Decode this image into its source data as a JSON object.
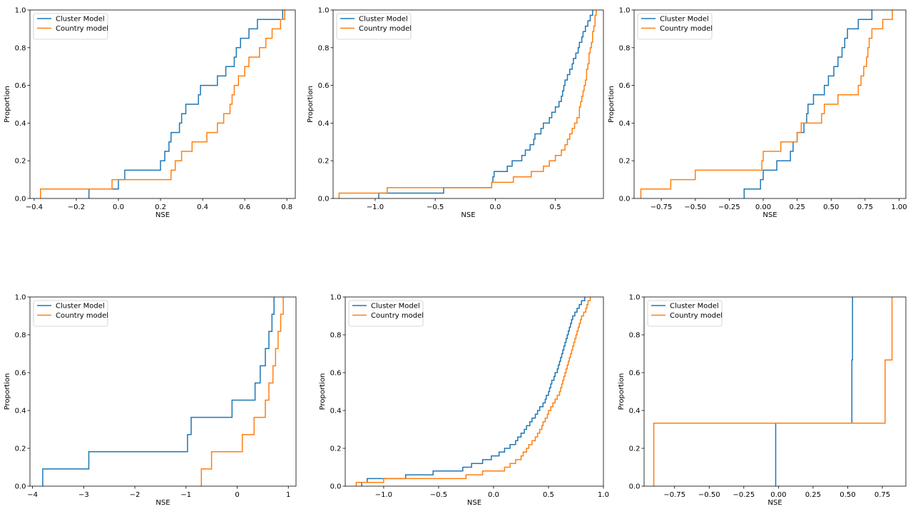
{
  "colors": {
    "cluster": "#1f77b4",
    "country": "#ff7f0e",
    "axis": "#000000"
  },
  "chart_data": [
    {
      "type": "line",
      "step": "ecdf",
      "xlabel": "NSE",
      "ylabel": "Proportion",
      "xlim": [
        -0.42,
        0.84
      ],
      "ylim": [
        0,
        1
      ],
      "xticks": [
        -0.4,
        -0.2,
        0.0,
        0.2,
        0.4,
        0.6,
        0.8
      ],
      "xtick_labels": [
        "−0.4",
        "−0.2",
        "0.0",
        "0.2",
        "0.4",
        "0.6",
        "0.8"
      ],
      "yticks": [
        0,
        0.2,
        0.4,
        0.6,
        0.8,
        1.0
      ],
      "ytick_labels": [
        "0.0",
        "0.2",
        "0.4",
        "0.6",
        "0.8",
        "1.0"
      ],
      "legend": "top-left",
      "series": [
        {
          "name": "Cluster Model",
          "x": [
            -0.14,
            0.0,
            0.03,
            0.2,
            0.22,
            0.24,
            0.25,
            0.29,
            0.3,
            0.32,
            0.38,
            0.39,
            0.47,
            0.51,
            0.55,
            0.56,
            0.58,
            0.62,
            0.66,
            0.78
          ]
        },
        {
          "name": "Country model",
          "x": [
            -0.37,
            -0.03,
            0.25,
            0.27,
            0.3,
            0.35,
            0.42,
            0.47,
            0.5,
            0.53,
            0.54,
            0.55,
            0.57,
            0.6,
            0.62,
            0.67,
            0.7,
            0.73,
            0.77,
            0.79
          ]
        }
      ]
    },
    {
      "type": "line",
      "step": "ecdf",
      "xlabel": "NSE",
      "ylabel": "Proportion",
      "xlim": [
        -1.35,
        0.9
      ],
      "ylim": [
        0,
        1
      ],
      "xticks": [
        -1.0,
        -0.5,
        0.0,
        0.5
      ],
      "xtick_labels": [
        "−1.0",
        "−0.5",
        "0.0",
        "0.5"
      ],
      "yticks": [
        0,
        0.2,
        0.4,
        0.6,
        0.8,
        1.0
      ],
      "ytick_labels": [
        "0.0",
        "0.2",
        "0.4",
        "0.6",
        "0.8",
        "1.0"
      ],
      "legend": "top-left",
      "series": [
        {
          "name": "Cluster Model",
          "x": [
            -0.97,
            -0.43,
            -0.03,
            -0.02,
            -0.01,
            0.1,
            0.14,
            0.22,
            0.25,
            0.29,
            0.32,
            0.33,
            0.38,
            0.4,
            0.45,
            0.47,
            0.5,
            0.53,
            0.55,
            0.56,
            0.57,
            0.58,
            0.6,
            0.62,
            0.64,
            0.65,
            0.67,
            0.69,
            0.7,
            0.72,
            0.73,
            0.75,
            0.77,
            0.79,
            0.81
          ]
        },
        {
          "name": "Country model",
          "x": [
            -1.3,
            -0.9,
            -0.03,
            0.15,
            0.3,
            0.4,
            0.45,
            0.5,
            0.55,
            0.58,
            0.6,
            0.62,
            0.64,
            0.66,
            0.68,
            0.7,
            0.7,
            0.71,
            0.72,
            0.73,
            0.74,
            0.75,
            0.76,
            0.76,
            0.77,
            0.78,
            0.78,
            0.79,
            0.8,
            0.81,
            0.81,
            0.82,
            0.83,
            0.83,
            0.84
          ]
        }
      ]
    },
    {
      "type": "line",
      "step": "ecdf",
      "xlabel": "NSE",
      "ylabel": "Proportion",
      "xlim": [
        -0.95,
        1.05
      ],
      "ylim": [
        0,
        1
      ],
      "xticks": [
        -0.75,
        -0.5,
        -0.25,
        0.0,
        0.25,
        0.5,
        0.75,
        1.0
      ],
      "xtick_labels": [
        "−0.75",
        "−0.50",
        "−0.25",
        "0.00",
        "0.25",
        "0.50",
        "0.75",
        "1.00"
      ],
      "yticks": [
        0,
        0.2,
        0.4,
        0.6,
        0.8,
        1.0
      ],
      "ytick_labels": [
        "0.0",
        "0.2",
        "0.4",
        "0.6",
        "0.8",
        "1.0"
      ],
      "legend": "top-left",
      "series": [
        {
          "name": "Cluster Model",
          "x": [
            -0.14,
            -0.02,
            0.0,
            0.1,
            0.2,
            0.22,
            0.25,
            0.3,
            0.32,
            0.33,
            0.37,
            0.45,
            0.48,
            0.52,
            0.55,
            0.58,
            0.6,
            0.62,
            0.7,
            0.8
          ]
        },
        {
          "name": "Country model",
          "x": [
            -0.9,
            -0.68,
            -0.5,
            -0.01,
            0.0,
            0.13,
            0.25,
            0.28,
            0.43,
            0.45,
            0.55,
            0.7,
            0.72,
            0.74,
            0.76,
            0.77,
            0.78,
            0.8,
            0.88,
            0.95
          ]
        }
      ]
    },
    {
      "type": "line",
      "step": "ecdf",
      "xlabel": "NSE",
      "ylabel": "Proportion",
      "xlim": [
        -4.05,
        1.15
      ],
      "ylim": [
        0,
        1
      ],
      "xticks": [
        -4,
        -3,
        -2,
        -1,
        0,
        1
      ],
      "xtick_labels": [
        "−4",
        "−3",
        "−2",
        "−1",
        "0",
        "1"
      ],
      "yticks": [
        0,
        0.2,
        0.4,
        0.6,
        0.8,
        1.0
      ],
      "ytick_labels": [
        "0.0",
        "0.2",
        "0.4",
        "0.6",
        "0.8",
        "1.0"
      ],
      "legend": "top-left",
      "series": [
        {
          "name": "Cluster Model",
          "x": [
            -3.8,
            -2.9,
            -0.97,
            -0.9,
            -0.1,
            0.35,
            0.45,
            0.55,
            0.62,
            0.68,
            0.72
          ]
        },
        {
          "name": "Country model",
          "x": [
            -0.7,
            -0.5,
            0.1,
            0.33,
            0.55,
            0.62,
            0.7,
            0.75,
            0.8,
            0.85,
            0.9
          ]
        }
      ]
    },
    {
      "type": "line",
      "step": "ecdf",
      "xlabel": "NSE",
      "ylabel": "Proportion",
      "xlim": [
        -1.35,
        1.0
      ],
      "ylim": [
        0,
        1
      ],
      "xticks": [
        -1.0,
        -0.5,
        0.0,
        0.5,
        1.0
      ],
      "xtick_labels": [
        "−1.0",
        "−0.5",
        "0.0",
        "0.5",
        "1.0"
      ],
      "yticks": [
        0,
        0.2,
        0.4,
        0.6,
        0.8,
        1.0
      ],
      "ytick_labels": [
        "0.0",
        "0.2",
        "0.4",
        "0.6",
        "0.8",
        "1.0"
      ],
      "legend": "top-left",
      "series": [
        {
          "name": "Cluster Model",
          "x": [
            -1.2,
            -1.15,
            -0.8,
            -0.55,
            -0.28,
            -0.2,
            -0.1,
            -0.02,
            0.05,
            0.1,
            0.15,
            0.2,
            0.22,
            0.25,
            0.28,
            0.3,
            0.33,
            0.35,
            0.38,
            0.4,
            0.42,
            0.45,
            0.47,
            0.48,
            0.5,
            0.51,
            0.52,
            0.53,
            0.55,
            0.56,
            0.58,
            0.59,
            0.6,
            0.61,
            0.62,
            0.63,
            0.64,
            0.65,
            0.66,
            0.67,
            0.68,
            0.69,
            0.7,
            0.71,
            0.72,
            0.74,
            0.76,
            0.78,
            0.8,
            0.83
          ]
        },
        {
          "name": "Country model",
          "x": [
            -1.25,
            -1.0,
            -0.25,
            -0.1,
            0.1,
            0.15,
            0.2,
            0.25,
            0.27,
            0.3,
            0.32,
            0.35,
            0.38,
            0.4,
            0.42,
            0.44,
            0.45,
            0.47,
            0.49,
            0.5,
            0.52,
            0.54,
            0.56,
            0.58,
            0.6,
            0.61,
            0.62,
            0.63,
            0.64,
            0.65,
            0.66,
            0.67,
            0.68,
            0.69,
            0.7,
            0.71,
            0.72,
            0.73,
            0.74,
            0.75,
            0.76,
            0.77,
            0.78,
            0.79,
            0.8,
            0.82,
            0.84,
            0.85,
            0.86,
            0.88
          ]
        }
      ]
    },
    {
      "type": "line",
      "step": "ecdf",
      "xlabel": "NSE",
      "ylabel": "Proportion",
      "xlim": [
        -0.97,
        0.92
      ],
      "ylim": [
        0,
        1
      ],
      "xticks": [
        -0.75,
        -0.5,
        -0.25,
        0.0,
        0.25,
        0.5,
        0.75
      ],
      "xtick_labels": [
        "−0.75",
        "−0.50",
        "−0.25",
        "0.00",
        "0.25",
        "0.50",
        "0.75"
      ],
      "yticks": [
        0,
        0.2,
        0.4,
        0.6,
        0.8,
        1.0
      ],
      "ytick_labels": [
        "0.0",
        "0.2",
        "0.4",
        "0.6",
        "0.8",
        "1.0"
      ],
      "legend": "top-left",
      "series": [
        {
          "name": "Cluster Model",
          "x": [
            -0.02,
            0.53,
            0.535
          ]
        },
        {
          "name": "Country model",
          "x": [
            -0.9,
            0.77,
            0.82
          ]
        }
      ]
    }
  ]
}
